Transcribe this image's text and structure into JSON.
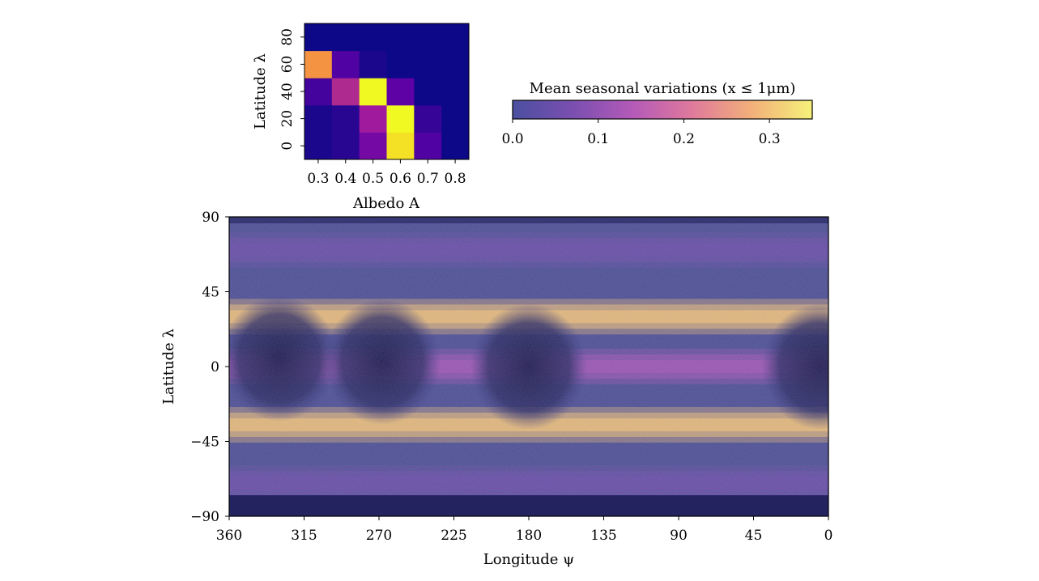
{
  "colorbar": {
    "label": "Mean seasonal variations (x ≤ 1μm)",
    "range": [
      0.0,
      0.35
    ],
    "ticks": [
      0.0,
      0.1,
      0.2,
      0.3
    ],
    "tick_labels": [
      "0.0",
      "0.1",
      "0.2",
      "0.3"
    ],
    "colors": [
      "#4b4fa0",
      "#7a4fb0",
      "#b45ab8",
      "#e07a9c",
      "#f2b07a",
      "#f6f27a"
    ]
  },
  "chart_data": [
    {
      "type": "heatmap",
      "title": "",
      "xlabel": "Albedo A",
      "ylabel": "Latitude λ",
      "x_tick_labels": [
        "0.3",
        "0.4",
        "0.5",
        "0.6",
        "0.7",
        "0.8"
      ],
      "y_tick_labels": [
        "0",
        "20",
        "40",
        "60",
        "80"
      ],
      "x_bins": [
        0.3,
        0.4,
        0.5,
        0.6,
        0.7,
        0.8
      ],
      "y_bins": [
        0,
        20,
        40,
        60,
        80
      ],
      "values": [
        [
          0.01,
          0.02,
          0.08,
          0.33,
          0.05,
          0.0
        ],
        [
          0.01,
          0.02,
          0.12,
          0.35,
          0.03,
          0.0
        ],
        [
          0.04,
          0.14,
          0.35,
          0.06,
          0.0,
          0.0
        ],
        [
          0.26,
          0.05,
          0.01,
          0.0,
          0.0,
          0.0
        ],
        [
          0.0,
          0.0,
          0.0,
          0.0,
          0.0,
          0.0
        ]
      ],
      "colormap": [
        "#0d0887",
        "#5c01a6",
        "#9c179e",
        "#cc4778",
        "#ed7953",
        "#fdb42f",
        "#f0f921"
      ],
      "vmax": 0.35
    },
    {
      "type": "heatmap",
      "title": "",
      "xlabel": "Longitude ψ",
      "ylabel": "Latitude λ",
      "xlim": [
        360,
        0
      ],
      "ylim": [
        -90,
        90
      ],
      "x_ticks": [
        360,
        315,
        270,
        225,
        180,
        135,
        90,
        45,
        0
      ],
      "x_tick_labels": [
        "360",
        "315",
        "270",
        "225",
        "180",
        "135",
        "90",
        "45",
        "0"
      ],
      "y_ticks": [
        90,
        45,
        0,
        -45,
        -90
      ],
      "y_tick_labels": [
        "90",
        "45",
        "0",
        "−45",
        "−90"
      ],
      "bands": [
        {
          "latitude": 30,
          "value": 0.3
        },
        {
          "latitude": -35,
          "value": 0.3
        },
        {
          "latitude": 0,
          "value": 0.12
        },
        {
          "latitude": 70,
          "value": 0.05
        },
        {
          "latitude": -70,
          "value": 0.05
        }
      ],
      "dark_regions": [
        {
          "longitude": 330,
          "latitude": 5,
          "value": 0.0
        },
        {
          "longitude": 268,
          "latitude": 3,
          "value": 0.0
        },
        {
          "longitude": 180,
          "latitude": 0,
          "value": 0.03
        },
        {
          "longitude": 5,
          "latitude": 0,
          "value": 0.0
        }
      ]
    }
  ]
}
